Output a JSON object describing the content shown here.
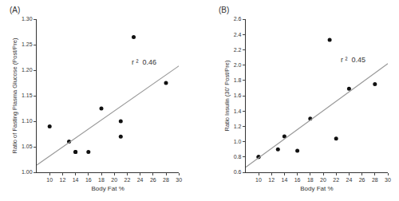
{
  "chart_data": [
    {
      "type": "scatter",
      "title": "(A)",
      "x_label": "Body Fat %",
      "y_label": "Ratio of Fasting Plasma Glucose (Post/Pre)",
      "series": [
        {
          "type": "scatter",
          "color": "#111111",
          "marker": "circle",
          "x": [
            10,
            13,
            14,
            14,
            16,
            18,
            21,
            21,
            23,
            28
          ],
          "values": [
            1.09,
            1.06,
            1.04,
            1.04,
            1.04,
            1.125,
            1.07,
            1.1,
            1.265,
            1.175
          ]
        },
        {
          "type": "line",
          "color": "#999999",
          "line_style": "solid",
          "x": [
            8,
            30
          ],
          "values": [
            1.0139,
            1.2084
          ]
        }
      ],
      "annotations": [
        {
          "text": "r ²  0.46",
          "x": 22.5,
          "y": 1.205
        }
      ],
      "xlim": [
        8,
        30
      ],
      "ylim": [
        1.0,
        1.3
      ],
      "xticks": [
        10,
        12,
        14,
        16,
        18,
        20,
        22,
        24,
        26,
        28,
        30
      ],
      "yticks": [
        {
          "value": 1.0,
          "label": "1.00"
        },
        {
          "value": 1.05,
          "label": "1.05"
        },
        {
          "value": 1.1,
          "label": "1.10"
        },
        {
          "value": 1.15,
          "label": "1.15"
        },
        {
          "value": 1.2,
          "label": "1.20"
        },
        {
          "value": 1.25,
          "label": "1.25"
        },
        {
          "value": 1.3,
          "label": "1.30"
        }
      ],
      "grid": false
    },
    {
      "type": "scatter",
      "title": "(B)",
      "x_label": "Body Fat %",
      "y_label": "Ratio Insulin (30' Post/Pre)",
      "series": [
        {
          "type": "scatter",
          "color": "#111111",
          "marker": "circle",
          "x": [
            10,
            10,
            13,
            14,
            16,
            18,
            21,
            22,
            24,
            28
          ],
          "values": [
            0.8,
            0.8,
            0.9,
            1.07,
            0.88,
            1.3,
            2.33,
            1.04,
            1.69,
            1.75
          ]
        },
        {
          "type": "line",
          "color": "#999999",
          "line_style": "solid",
          "x": [
            8,
            30
          ],
          "values": [
            0.6647,
            2.0198
          ]
        }
      ],
      "annotations": [
        {
          "text": "r ²  0.45",
          "x": 22.5,
          "y": 2.0
        }
      ],
      "xlim": [
        8,
        30
      ],
      "ylim": [
        0.6,
        2.6
      ],
      "xticks": [
        10,
        12,
        14,
        16,
        18,
        20,
        22,
        24,
        26,
        28,
        30
      ],
      "yticks": [
        0.6,
        0.8,
        {
          "value": 1.0,
          "label": "1.0"
        },
        1.2,
        1.4,
        1.6,
        1.8,
        {
          "value": 2.0,
          "label": "2.0"
        },
        2.2,
        2.4,
        2.6
      ],
      "grid": false
    }
  ]
}
